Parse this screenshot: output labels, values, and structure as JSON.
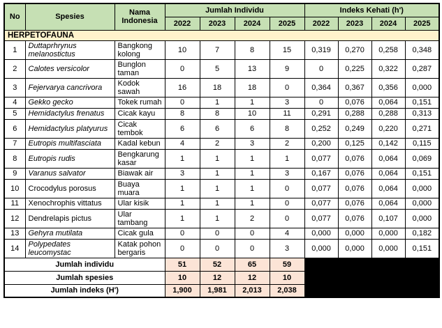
{
  "table": {
    "headers": {
      "no": "No",
      "species": "Spesies",
      "indonesian": "Nama Indonesia",
      "jumlah_group": "Jumlah Individu",
      "indeks_group": "Indeks Kehati (h')",
      "years": [
        "2022",
        "2023",
        "2024",
        "2025"
      ]
    },
    "section": "HERPETOFAUNA",
    "rows": [
      {
        "no": "1",
        "species": "Duttaprhrynus melanostictus",
        "italic": true,
        "indonesian": "Bangkong kolong",
        "jumlah": [
          "10",
          "7",
          "8",
          "15"
        ],
        "indeks": [
          "0,319",
          "0,270",
          "0,258",
          "0,348"
        ]
      },
      {
        "no": "2",
        "species": "Calotes versicolor",
        "italic": true,
        "indonesian": "Bunglon taman",
        "jumlah": [
          "0",
          "5",
          "13",
          "9"
        ],
        "indeks": [
          "0",
          "0,225",
          "0,322",
          "0,287"
        ]
      },
      {
        "no": "3",
        "species": "Fejervarya cancrivora",
        "italic": true,
        "indonesian": "Kodok sawah",
        "jumlah": [
          "16",
          "18",
          "18",
          "0"
        ],
        "indeks": [
          "0,364",
          "0,367",
          "0,356",
          "0,000"
        ]
      },
      {
        "no": "4",
        "species": "Gekko gecko",
        "italic": true,
        "indonesian": "Tokek rumah",
        "jumlah": [
          "0",
          "1",
          "1",
          "3"
        ],
        "indeks": [
          "0",
          "0,076",
          "0,064",
          "0,151"
        ]
      },
      {
        "no": "5",
        "species": "Hemidactylus frenatus",
        "italic": true,
        "indonesian": "Cicak kayu",
        "jumlah": [
          "8",
          "8",
          "10",
          "11"
        ],
        "indeks": [
          "0,291",
          "0,288",
          "0,288",
          "0,313"
        ]
      },
      {
        "no": "6",
        "species": "Hemidactylus platyurus",
        "italic": true,
        "indonesian": "Cicak tembok",
        "jumlah": [
          "6",
          "6",
          "6",
          "8"
        ],
        "indeks": [
          "0,252",
          "0,249",
          "0,220",
          "0,271"
        ]
      },
      {
        "no": "7",
        "species": "Eutropis multifasciata",
        "italic": true,
        "indonesian": "Kadal kebun",
        "jumlah": [
          "4",
          "2",
          "3",
          "2"
        ],
        "indeks": [
          "0,200",
          "0,125",
          "0,142",
          "0,115"
        ]
      },
      {
        "no": "8",
        "species": "Eutropis rudis",
        "italic": true,
        "indonesian": "Bengkarung kasar",
        "jumlah": [
          "1",
          "1",
          "1",
          "1"
        ],
        "indeks": [
          "0,077",
          "0,076",
          "0,064",
          "0,069"
        ]
      },
      {
        "no": "9",
        "species": "Varanus salvator",
        "italic": true,
        "indonesian": "Biawak air",
        "jumlah": [
          "3",
          "1",
          "1",
          "3"
        ],
        "indeks": [
          "0,167",
          "0,076",
          "0,064",
          "0,151"
        ]
      },
      {
        "no": "10",
        "species": "Crocodylus porosus",
        "italic": false,
        "indonesian": "Buaya muara",
        "jumlah": [
          "1",
          "1",
          "1",
          "0"
        ],
        "indeks": [
          "0,077",
          "0,076",
          "0,064",
          "0,000"
        ]
      },
      {
        "no": "11",
        "species": "Xenochrophis vittatus",
        "italic": false,
        "indonesian": "Ular kisik",
        "jumlah": [
          "1",
          "1",
          "1",
          "0"
        ],
        "indeks": [
          "0,077",
          "0,076",
          "0,064",
          "0,000"
        ]
      },
      {
        "no": "12",
        "species": "Dendrelapis pictus",
        "italic": false,
        "indonesian": "Ular tambang",
        "jumlah": [
          "1",
          "1",
          "2",
          "0"
        ],
        "indeks": [
          "0,077",
          "0,076",
          "0,107",
          "0,000"
        ]
      },
      {
        "no": "13",
        "species": "Gehyra mutilata",
        "italic": true,
        "indonesian": "Cicak gula",
        "jumlah": [
          "0",
          "0",
          "0",
          "4"
        ],
        "indeks": [
          "0,000",
          "0,000",
          "0,000",
          "0,182"
        ]
      },
      {
        "no": "14",
        "species": "Polypedates leucomystac",
        "italic": true,
        "indonesian": "Katak pohon bergaris",
        "jumlah": [
          "0",
          "0",
          "0",
          "3"
        ],
        "indeks": [
          "0,000",
          "0,000",
          "0,000",
          "0,151"
        ]
      }
    ],
    "summary": [
      {
        "label": "Jumlah individu",
        "values": [
          "51",
          "52",
          "65",
          "59"
        ]
      },
      {
        "label": "Jumlah spesies",
        "values": [
          "10",
          "12",
          "12",
          "10"
        ]
      },
      {
        "label": "Jumlah indeks (H')",
        "values": [
          "1,900",
          "1,981",
          "2,013",
          "2,038"
        ]
      }
    ]
  },
  "colors": {
    "header_green": "#c6e0b4",
    "section_cream": "#fff2cc",
    "summary_peach": "#fce4d6",
    "redacted_black": "#000000"
  }
}
